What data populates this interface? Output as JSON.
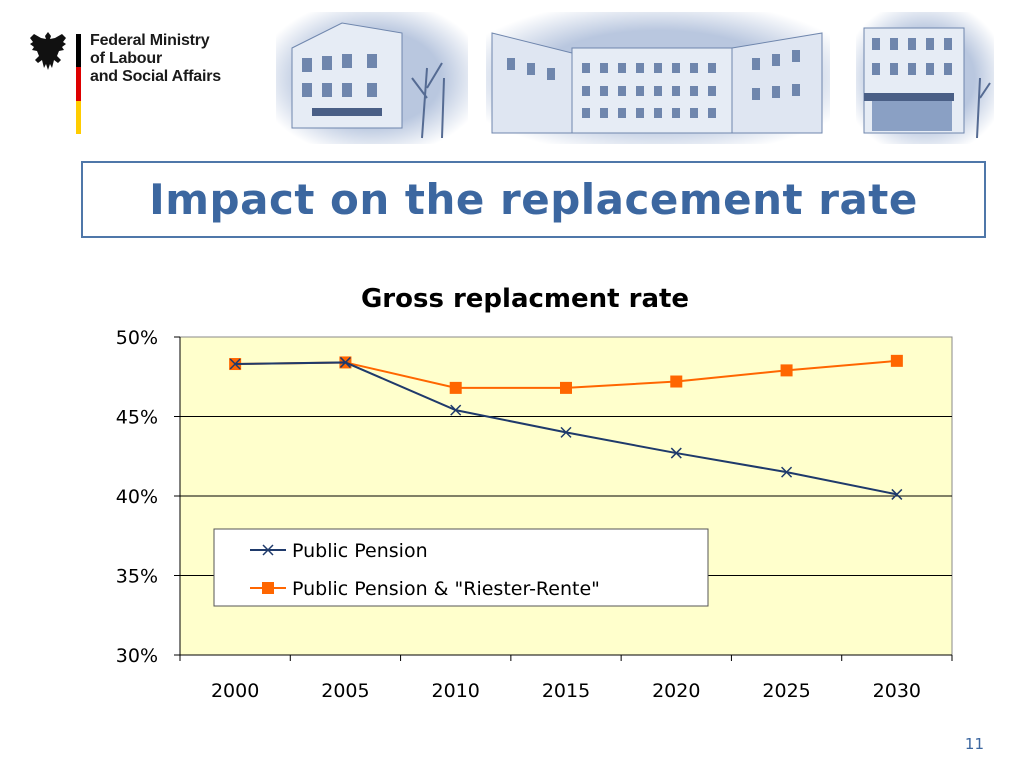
{
  "header": {
    "ministry_lines": [
      "Federal Ministry",
      "of Labour",
      "and Social Affairs"
    ],
    "flag_colors": [
      "#000000",
      "#dd0000",
      "#ffcc00"
    ],
    "photos": [
      "building-photo-1",
      "building-photo-2",
      "building-photo-3"
    ]
  },
  "slide": {
    "title": "Impact on the replacement rate",
    "page_number": "11",
    "title_color": "#3c67a0"
  },
  "chart_data": {
    "type": "line",
    "title": "Gross replacment rate",
    "x": [
      "2000",
      "2005",
      "2010",
      "2015",
      "2020",
      "2025",
      "2030"
    ],
    "y_ticks": [
      "30%",
      "35%",
      "40%",
      "45%",
      "50%"
    ],
    "ylim": [
      30,
      50
    ],
    "y_unit": "%",
    "grid": true,
    "plot_background": "#ffffcc",
    "legend_position": "lower-left",
    "series": [
      {
        "name": "Public Pension",
        "values": [
          48.3,
          48.4,
          45.4,
          44.0,
          42.7,
          41.5,
          40.1
        ],
        "color": "#1f3a6b",
        "marker": "x"
      },
      {
        "name": "Public Pension & \"Riester-Rente\"",
        "values": [
          48.3,
          48.4,
          46.8,
          46.8,
          47.2,
          47.9,
          48.5
        ],
        "color": "#ff6600",
        "marker": "square"
      }
    ]
  }
}
